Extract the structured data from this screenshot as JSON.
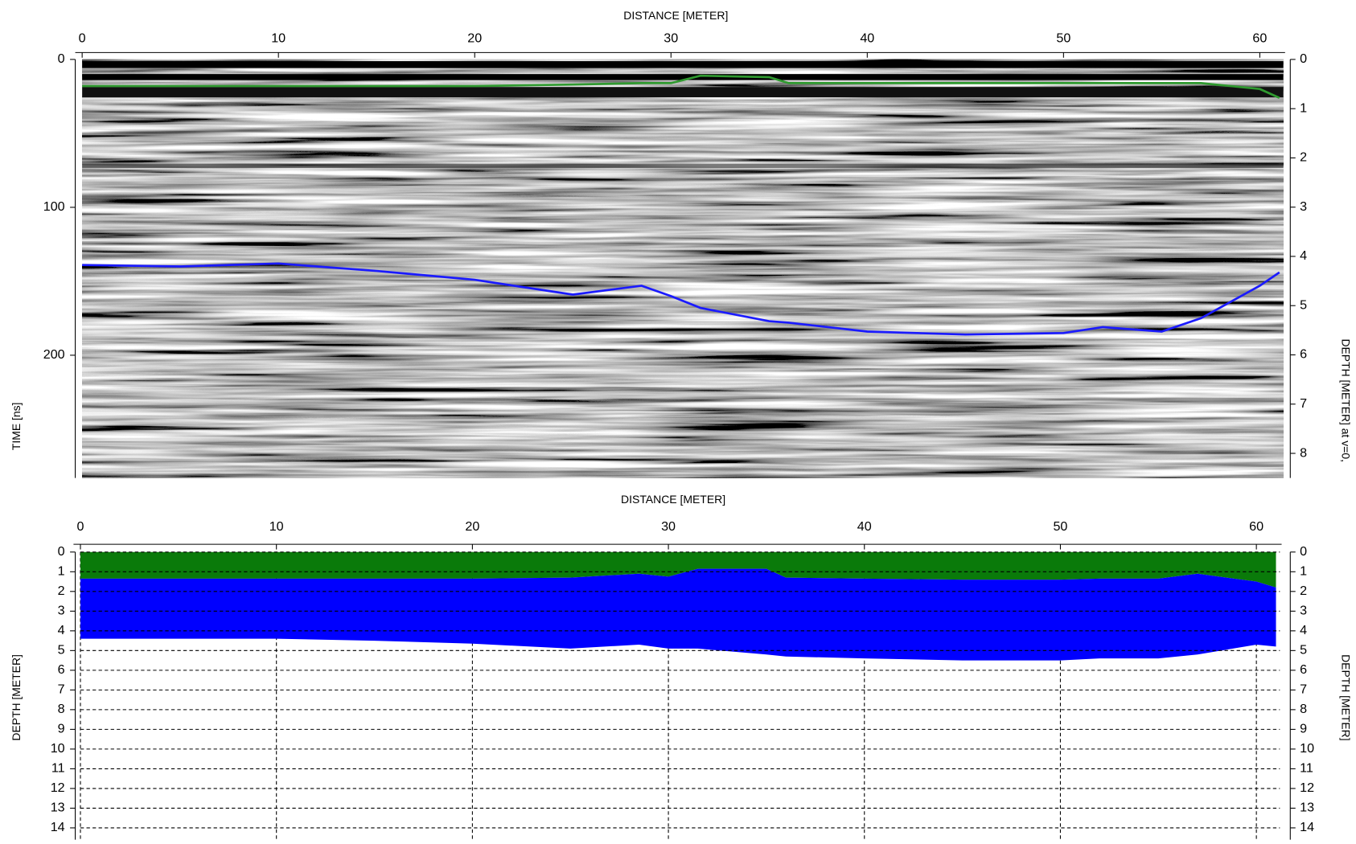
{
  "chart_data": [
    {
      "type": "line",
      "title": "DISTANCE [METER]",
      "ylabel": "TIME [ns]",
      "y2label": "DEPTH [METER] at v=0,",
      "x": [
        0,
        5,
        10,
        15,
        20,
        25,
        28.5,
        30,
        31.5,
        35,
        36,
        40,
        45,
        50,
        52,
        55,
        57,
        60,
        61
      ],
      "series": [
        {
          "color": "#2f9a2f",
          "values": [
            18,
            18,
            18,
            18,
            18,
            17,
            16,
            16,
            11,
            12,
            16,
            16,
            16,
            16,
            16,
            16,
            16,
            20,
            26
          ]
        },
        {
          "color": "#1a1aff",
          "values": [
            139,
            140,
            138,
            143,
            149,
            159,
            153,
            160,
            168,
            177,
            178,
            184,
            186,
            185,
            181,
            184,
            175,
            153,
            144
          ]
        }
      ],
      "xlim": [
        0,
        61.2
      ],
      "xticks": [
        0,
        10,
        20,
        30,
        40,
        50,
        60
      ],
      "ylim": [
        0,
        283
      ],
      "yticks": [
        0,
        100,
        200
      ],
      "y2lim": [
        0,
        8.5
      ],
      "y2ticks": [
        0,
        1,
        2,
        3,
        4,
        5,
        6,
        7,
        8
      ]
    },
    {
      "type": "area",
      "stacked": true,
      "title": "DISTANCE [METER]",
      "ylabel": "DEPTH [METER]",
      "y2label": "DEPTH [METER]",
      "x": [
        0,
        5,
        10,
        15,
        20,
        25,
        28.5,
        30,
        31.5,
        35,
        36,
        40,
        45,
        50,
        52,
        55,
        57,
        60,
        61
      ],
      "series": [
        {
          "color": "#0a7a0a",
          "values": [
            1.35,
            1.35,
            1.35,
            1.35,
            1.35,
            1.3,
            1.1,
            1.25,
            0.85,
            0.85,
            1.3,
            1.35,
            1.4,
            1.4,
            1.35,
            1.35,
            1.1,
            1.5,
            1.8
          ]
        },
        {
          "color": "#0000ff",
          "values": [
            3.05,
            3.05,
            3.05,
            3.15,
            3.3,
            3.6,
            3.6,
            3.65,
            4.05,
            4.35,
            4.0,
            4.05,
            4.1,
            4.1,
            4.05,
            4.05,
            4.1,
            3.2,
            3.0
          ]
        }
      ],
      "xlim": [
        0,
        61.2
      ],
      "xticks": [
        0,
        10,
        20,
        30,
        40,
        50,
        60
      ],
      "ylim": [
        0,
        14.6
      ],
      "yticks": [
        0,
        1,
        2,
        3,
        4,
        5,
        6,
        7,
        8,
        9,
        10,
        11,
        12,
        13,
        14
      ],
      "grid": true
    }
  ]
}
